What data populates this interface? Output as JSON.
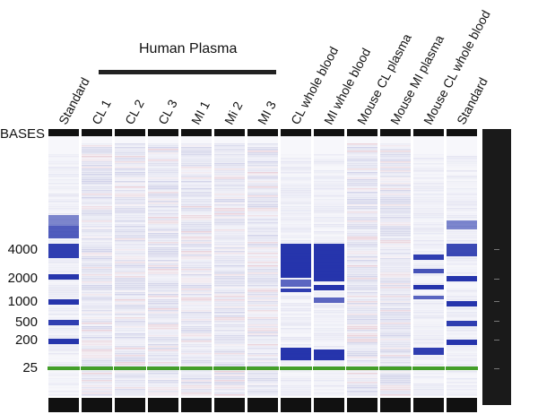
{
  "human_plasma": {
    "title": "Human Plasma"
  },
  "lanes": [
    {
      "label": "Standard"
    },
    {
      "label": "CL 1"
    },
    {
      "label": "CL 2"
    },
    {
      "label": "CL 3"
    },
    {
      "label": "MI 1"
    },
    {
      "label": "Mi 2"
    },
    {
      "label": "MI 3"
    },
    {
      "label": "CL whole blood"
    },
    {
      "label": "MI whole blood"
    },
    {
      "label": "Mouse CL plasma"
    },
    {
      "label": "Mouse MI plasma"
    },
    {
      "label": "Mouse CL whole blood"
    },
    {
      "label": "Standard"
    }
  ],
  "bases_label": "BASES",
  "size_markers": [
    "4000",
    "2000",
    "1000",
    "500",
    "200",
    "25"
  ],
  "colors": {
    "band": "#1a2aa8",
    "marker_line": "#3a9a1e",
    "header": "#111111"
  }
}
